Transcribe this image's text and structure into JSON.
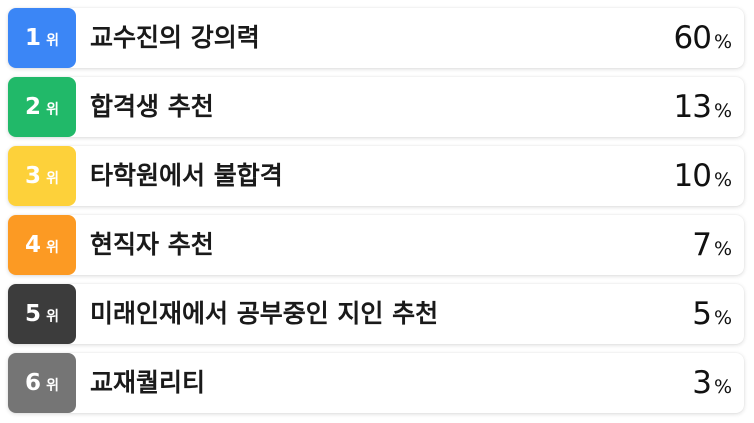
{
  "chart_data": {
    "type": "bar",
    "title": "",
    "rank_unit": "위",
    "value_unit": "%",
    "categories": [
      "교수진의 강의력",
      "합격생 추천",
      "타학원에서 불합격",
      "현직자 추천",
      "미래인재에서 공부중인 지인 추천",
      "교재퀄리티"
    ],
    "values": [
      60,
      13,
      10,
      7,
      5,
      3
    ],
    "items": [
      {
        "rank": "1",
        "label": "교수진의 강의력",
        "value": "60",
        "color": "#3b86f6"
      },
      {
        "rank": "2",
        "label": "합격생 추천",
        "value": "13",
        "color": "#21b969"
      },
      {
        "rank": "3",
        "label": "타학원에서 불합격",
        "value": "10",
        "color": "#fdd13a"
      },
      {
        "rank": "4",
        "label": "현직자 추천",
        "value": "7",
        "color": "#fc9a23"
      },
      {
        "rank": "5",
        "label": "미래인재에서 공부중인 지인 추천",
        "value": "5",
        "color": "#3c3c3c"
      },
      {
        "rank": "6",
        "label": "교재퀄리티",
        "value": "3",
        "color": "#757575"
      }
    ]
  }
}
